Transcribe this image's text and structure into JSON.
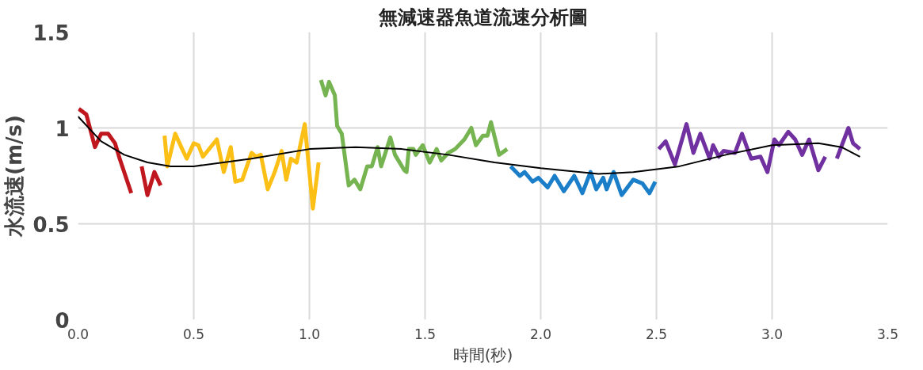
{
  "chart_data": {
    "type": "line",
    "title": "無減速器魚道流速分析圖",
    "xlabel": "時間(秒)",
    "ylabel": "水流速(m/s)",
    "xlim": [
      0,
      3.5
    ],
    "ylim": [
      0,
      1.5
    ],
    "xticks": [
      {
        "value": 0,
        "label": "0.0"
      },
      {
        "value": 0.5,
        "label": "0.5"
      },
      {
        "value": 1,
        "label": "1.0"
      },
      {
        "value": 1.5,
        "label": "1.5"
      },
      {
        "value": 2,
        "label": "2.0"
      },
      {
        "value": 2.5,
        "label": "2.5"
      },
      {
        "value": 3,
        "label": "3.0"
      },
      {
        "value": 3.5,
        "label": "3.5"
      }
    ],
    "yticks": [
      0,
      0.5,
      1,
      1.5
    ],
    "grid": true,
    "marker": "none",
    "line_style": "solid",
    "series": [
      {
        "color": "#c0161e",
        "x": [
          0.003,
          0.036,
          0.073,
          0.1,
          0.13,
          0.16,
          0.18,
          0.23,
          0.25,
          0.275,
          0.3,
          0.33,
          0.357
        ],
        "values": [
          1.1,
          1.07,
          0.9,
          0.97,
          0.97,
          0.92,
          0.84,
          0.66,
          null,
          0.8,
          0.65,
          0.77,
          0.7
        ]
      },
      {
        "color": "#fcbf16",
        "x": [
          0.374,
          0.386,
          0.42,
          0.45,
          0.47,
          0.5,
          0.52,
          0.54,
          0.6,
          0.63,
          0.66,
          0.68,
          0.71,
          0.75,
          0.77,
          0.79,
          0.82,
          0.85,
          0.88,
          0.9,
          0.92,
          0.945,
          0.98,
          1.015,
          1.04
        ],
        "values": [
          0.96,
          0.8,
          0.97,
          0.89,
          0.84,
          0.92,
          0.91,
          0.85,
          0.94,
          0.77,
          0.9,
          0.72,
          0.73,
          0.87,
          0.85,
          0.86,
          0.68,
          0.77,
          0.88,
          0.73,
          0.84,
          0.82,
          1.02,
          0.58,
          0.82
        ]
      },
      {
        "color": "#76b451",
        "x": [
          1.05,
          1.07,
          1.085,
          1.11,
          1.12,
          1.14,
          1.17,
          1.195,
          1.22,
          1.25,
          1.27,
          1.295,
          1.31,
          1.35,
          1.37,
          1.41,
          1.42,
          1.43,
          1.45,
          1.46,
          1.49,
          1.52,
          1.55,
          1.57,
          1.6,
          1.63,
          1.67,
          1.7,
          1.72,
          1.75,
          1.77,
          1.785,
          1.82,
          1.855
        ],
        "values": [
          1.25,
          1.17,
          1.24,
          1.17,
          1.01,
          0.97,
          0.7,
          0.73,
          0.68,
          0.8,
          0.8,
          0.9,
          0.8,
          0.95,
          0.86,
          0.78,
          0.77,
          0.89,
          0.89,
          0.86,
          0.91,
          0.82,
          0.89,
          0.83,
          0.87,
          0.89,
          0.94,
          1.0,
          0.91,
          0.96,
          0.96,
          1.03,
          0.86,
          0.89
        ]
      },
      {
        "color": "#1a7ec8",
        "x": [
          1.87,
          1.91,
          1.93,
          1.965,
          1.99,
          2.03,
          2.06,
          2.1,
          2.145,
          2.18,
          2.215,
          2.24,
          2.27,
          2.285,
          2.315,
          2.35,
          2.4,
          2.44,
          2.47,
          2.495
        ],
        "values": [
          0.8,
          0.75,
          0.77,
          0.72,
          0.74,
          0.69,
          0.75,
          0.67,
          0.75,
          0.66,
          0.77,
          0.68,
          0.74,
          0.68,
          0.77,
          0.65,
          0.73,
          0.71,
          0.66,
          0.72
        ]
      },
      {
        "color": "#7030a0",
        "x": [
          2.51,
          2.54,
          2.58,
          2.63,
          2.66,
          2.69,
          2.73,
          2.745,
          2.77,
          2.79,
          2.84,
          2.87,
          2.9,
          2.91,
          2.95,
          2.98,
          3.01,
          3.03,
          3.07,
          3.1,
          3.13,
          3.16,
          3.2,
          3.23,
          3.25,
          3.28,
          3.33,
          3.35,
          3.38
        ],
        "values": [
          0.89,
          0.93,
          0.81,
          1.02,
          0.87,
          0.97,
          0.84,
          0.91,
          0.85,
          0.88,
          0.87,
          0.97,
          0.87,
          0.84,
          0.85,
          0.77,
          0.94,
          0.91,
          0.98,
          0.94,
          0.86,
          0.94,
          0.78,
          0.85,
          null,
          0.84,
          1.0,
          0.92,
          0.89
        ]
      },
      {
        "color": "#000000",
        "x": [
          0,
          0.1,
          0.2,
          0.3,
          0.4,
          0.5,
          0.75,
          1.0,
          1.2,
          1.4,
          1.6,
          1.8,
          2.0,
          2.25,
          2.4,
          2.6,
          2.8,
          3.0,
          3.2,
          3.3,
          3.38
        ],
        "values": [
          1.06,
          0.93,
          0.86,
          0.82,
          0.8,
          0.8,
          0.84,
          0.89,
          0.9,
          0.89,
          0.86,
          0.82,
          0.79,
          0.76,
          0.77,
          0.8,
          0.86,
          0.91,
          0.92,
          0.9,
          0.85
        ]
      }
    ]
  }
}
